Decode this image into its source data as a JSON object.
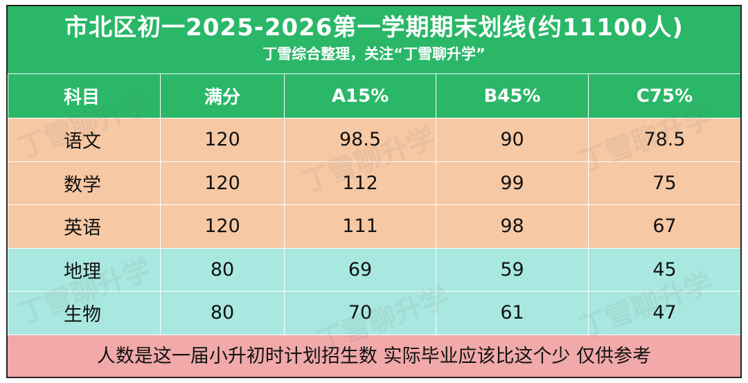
{
  "header": {
    "title": "市北区初一2025-2026第一学期期末划线(约11100人)",
    "subtitle": "丁雪综合整理，关注“丁雪聊升学”"
  },
  "table": {
    "columns": [
      "科目",
      "满分",
      "A15%",
      "B45%",
      "C75%"
    ],
    "rows": [
      {
        "subject": "语文",
        "full": "120",
        "a": "98.5",
        "b": "90",
        "c": "78.5",
        "group": "lang"
      },
      {
        "subject": "数学",
        "full": "120",
        "a": "112",
        "b": "99",
        "c": "75",
        "group": "lang"
      },
      {
        "subject": "英语",
        "full": "120",
        "a": "111",
        "b": "98",
        "c": "67",
        "group": "lang"
      },
      {
        "subject": "地理",
        "full": "80",
        "a": "69",
        "b": "59",
        "c": "45",
        "group": "sci"
      },
      {
        "subject": "生物",
        "full": "80",
        "a": "70",
        "b": "61",
        "c": "47",
        "group": "sci"
      }
    ]
  },
  "footer": {
    "note": "人数是这一届小升初时计划招生数 实际毕业应该比这个少 仅供参考"
  },
  "watermark": {
    "text": "丁雪聊升学"
  },
  "colors": {
    "header_green": "#2ab768",
    "lang_row": "#f6c8a4",
    "sci_row": "#a8e8e0",
    "footer_pink": "#f1a9a9"
  }
}
